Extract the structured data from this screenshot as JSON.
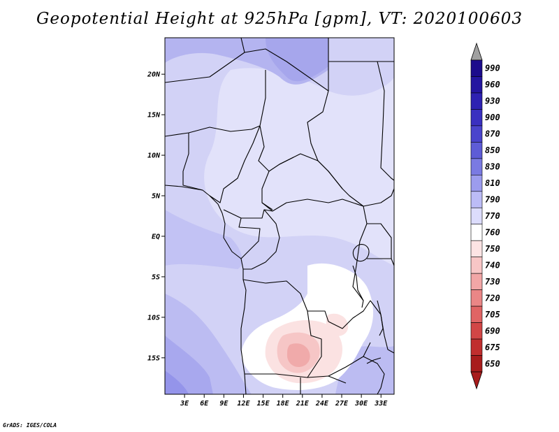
{
  "title": "Geopotential Height at 925hPa [gpm], VT: 2020100603",
  "credit": "GrADS: IGES/COLA",
  "lat_labels": [
    "20N",
    "15N",
    "10N",
    "5N",
    "EQ",
    "5S",
    "10S",
    "15S"
  ],
  "lat_values": [
    20,
    15,
    10,
    5,
    0,
    -5,
    -10,
    -15
  ],
  "lon_labels": [
    "3E",
    "6E",
    "9E",
    "12E",
    "15E",
    "18E",
    "21E",
    "24E",
    "27E",
    "30E",
    "33E"
  ],
  "lon_values": [
    3,
    6,
    9,
    12,
    15,
    18,
    21,
    24,
    27,
    30,
    33
  ],
  "extent": {
    "lon_min": 0,
    "lon_max": 35,
    "lat_min": -19.5,
    "lat_max": 24.5
  },
  "colorbar": {
    "levels": [
      "990",
      "960",
      "930",
      "900",
      "870",
      "850",
      "830",
      "810",
      "790",
      "770",
      "760",
      "750",
      "740",
      "730",
      "720",
      "705",
      "690",
      "675",
      "650"
    ],
    "colors": [
      "#1c0c8c",
      "#2416a0",
      "#2e22b2",
      "#3a30c0",
      "#4a44cc",
      "#5e5cd6",
      "#7a7ae2",
      "#9c9cee",
      "#bcbcf6",
      "#dcdcfc",
      "#ffffff",
      "#fde4e4",
      "#f8c6c6",
      "#f2a6a6",
      "#ea8686",
      "#e06464",
      "#d24646",
      "#c02e2e",
      "#a81c1c"
    ],
    "top_arrow_color": "#a0a0a0",
    "bottom_arrow_color": "#a81c1c"
  },
  "field_colors": {
    "base": "#d2d2f6",
    "light": "#e6e6fb",
    "mid": "#bebef2",
    "dark": "#a8a8ee",
    "darker": "#9595ea",
    "white": "#ffffff",
    "pink": "#fbe0e0",
    "pink2": "#f6c4c4",
    "pink3": "#f0a8a8"
  }
}
